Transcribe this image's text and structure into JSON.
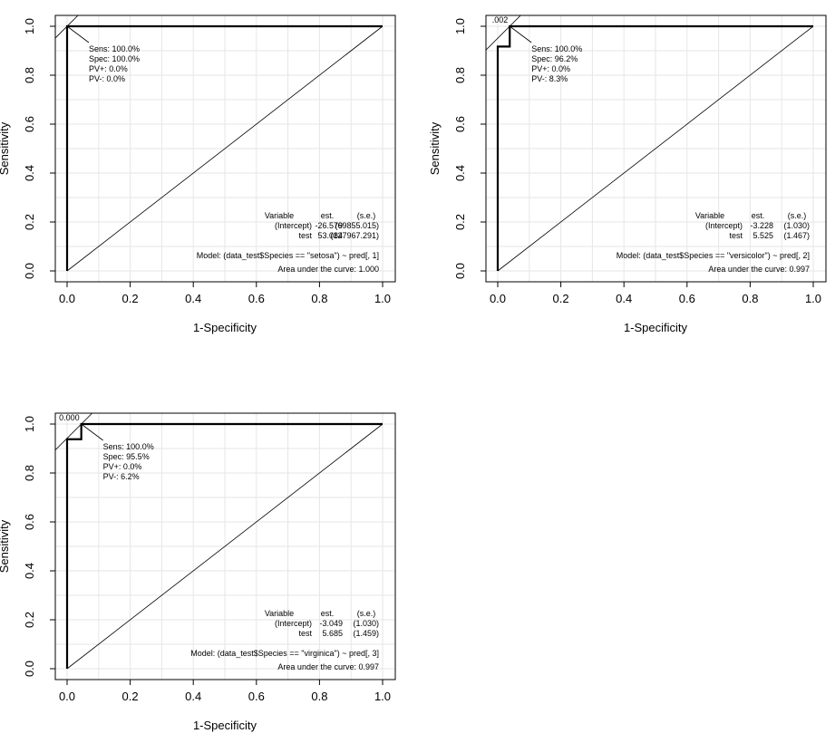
{
  "chart_data": [
    {
      "type": "line",
      "xlabel": "1-Specificity",
      "ylabel": "Sensitivity",
      "xlim": [
        0,
        1
      ],
      "ylim": [
        0,
        1
      ],
      "x_ticks": [
        "0.0",
        "0.2",
        "0.4",
        "0.6",
        "0.8",
        "1.0"
      ],
      "y_ticks": [
        "0.0",
        "0.2",
        "0.4",
        "0.6",
        "0.8",
        "1.0"
      ],
      "grid": true,
      "roc": {
        "x": [
          0,
          0,
          1
        ],
        "y": [
          0,
          1,
          1
        ]
      },
      "diagonal": {
        "x": [
          0,
          1
        ],
        "y": [
          0,
          1
        ]
      },
      "cutoff_label": "",
      "optimal_point": {
        "x": 0.0,
        "y": 1.0
      },
      "annotations": [
        "Sens: 100.0%",
        "Spec: 100.0%",
        "PV+: 0.0%",
        "PV-: 0.0%"
      ],
      "coef_table": {
        "header": [
          "Variable",
          "est.",
          "(s.e.)"
        ],
        "rows": [
          [
            "(Intercept)",
            "-26.579",
            "(69855.015)"
          ],
          [
            "test",
            "53.084",
            "(127967.291)"
          ]
        ]
      },
      "model": "Model:  (data_test$Species == \"setosa\") ~ pred[, 1]",
      "auc": "Area under the curve: 1.000"
    },
    {
      "type": "line",
      "xlabel": "1-Specificity",
      "ylabel": "Sensitivity",
      "xlim": [
        0,
        1
      ],
      "ylim": [
        0,
        1
      ],
      "x_ticks": [
        "0.0",
        "0.2",
        "0.4",
        "0.6",
        "0.8",
        "1.0"
      ],
      "y_ticks": [
        "0.0",
        "0.2",
        "0.4",
        "0.6",
        "0.8",
        "1.0"
      ],
      "grid": true,
      "roc": {
        "x": [
          0,
          0,
          0.038,
          0.038,
          1
        ],
        "y": [
          0,
          0.917,
          0.917,
          1,
          1
        ]
      },
      "diagonal": {
        "x": [
          0,
          1
        ],
        "y": [
          0,
          1
        ]
      },
      "cutoff_label": ".002",
      "optimal_point": {
        "x": 0.038,
        "y": 1.0
      },
      "annotations": [
        "Sens: 100.0%",
        "Spec: 96.2%",
        "PV+: 0.0%",
        "PV-: 8.3%"
      ],
      "coef_table": {
        "header": [
          "Variable",
          "est.",
          "(s.e.)"
        ],
        "rows": [
          [
            "(Intercept)",
            "-3.228",
            "(1.030)"
          ],
          [
            "test",
            "5.525",
            "(1.467)"
          ]
        ]
      },
      "model": "Model:  (data_test$Species == \"versicolor\") ~ pred[, 2]",
      "auc": "Area under the curve: 0.997"
    },
    {
      "type": "line",
      "xlabel": "1-Specificity",
      "ylabel": "Sensitivity",
      "xlim": [
        0,
        1
      ],
      "ylim": [
        0,
        1
      ],
      "x_ticks": [
        "0.0",
        "0.2",
        "0.4",
        "0.6",
        "0.8",
        "1.0"
      ],
      "y_ticks": [
        "0.0",
        "0.2",
        "0.4",
        "0.6",
        "0.8",
        "1.0"
      ],
      "grid": true,
      "roc": {
        "x": [
          0,
          0,
          0.045,
          0.045,
          1
        ],
        "y": [
          0,
          0.938,
          0.938,
          1,
          1
        ]
      },
      "diagonal": {
        "x": [
          0,
          1
        ],
        "y": [
          0,
          1
        ]
      },
      "cutoff_label": "0.000",
      "optimal_point": {
        "x": 0.045,
        "y": 1.0
      },
      "annotations": [
        "Sens: 100.0%",
        "Spec: 95.5%",
        "PV+: 0.0%",
        "PV-: 6.2%"
      ],
      "coef_table": {
        "header": [
          "Variable",
          "est.",
          "(s.e.)"
        ],
        "rows": [
          [
            "(Intercept)",
            "-3.049",
            "(1.030)"
          ],
          [
            "test",
            "5.685",
            "(1.459)"
          ]
        ]
      },
      "model": "Model:  (data_test$Species == \"virginica\") ~ pred[, 3]",
      "auc": "Area under the curve: 0.997"
    }
  ]
}
